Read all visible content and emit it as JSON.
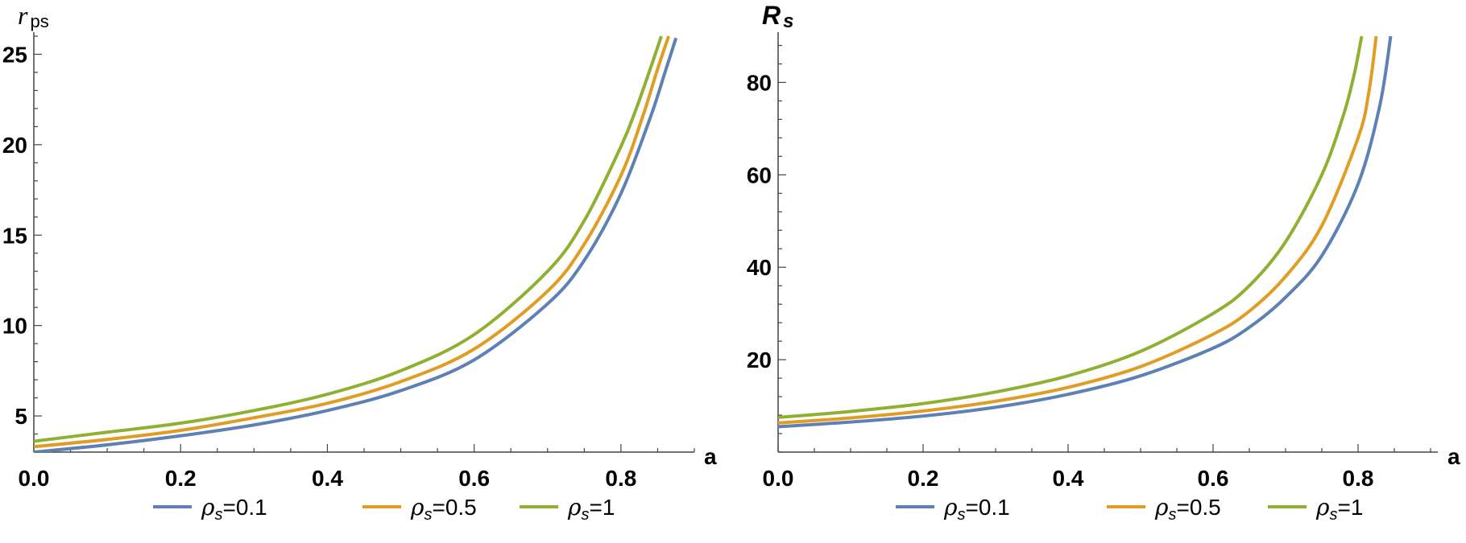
{
  "chart_data": [
    {
      "type": "line",
      "title": "",
      "ylabel": "r",
      "ylabel_sub": "ps",
      "xlabel": "a",
      "xlim": [
        0,
        0.9
      ],
      "ylim": [
        3,
        26
      ],
      "x_ticks": [
        0.0,
        0.2,
        0.4,
        0.6,
        0.8
      ],
      "x_tick_labels": [
        "0.0",
        "0.2",
        "0.4",
        "0.6",
        "0.8"
      ],
      "y_ticks": [
        5,
        10,
        15,
        20,
        25
      ],
      "y_tick_labels": [
        "5",
        "10",
        "15",
        "20",
        "25"
      ],
      "legend_position": "bottom",
      "series": [
        {
          "name": "ρs=0.1",
          "legend_label": "ρ",
          "legend_sub": "s",
          "legend_value": "=0.1",
          "color": "#5e81b5",
          "x": [
            0.0,
            0.1,
            0.2,
            0.3,
            0.4,
            0.5,
            0.6,
            0.7,
            0.75,
            0.8,
            0.84,
            0.86,
            0.875
          ],
          "y": [
            3.0,
            3.4,
            3.9,
            4.5,
            5.3,
            6.4,
            8.1,
            11.2,
            13.6,
            17.3,
            21.5,
            24.0,
            25.9
          ]
        },
        {
          "name": "ρs=0.5",
          "legend_label": "ρ",
          "legend_sub": "s",
          "legend_value": "=0.5",
          "color": "#e19c24",
          "x": [
            0.0,
            0.1,
            0.2,
            0.3,
            0.4,
            0.5,
            0.6,
            0.7,
            0.75,
            0.8,
            0.83,
            0.85,
            0.865
          ],
          "y": [
            3.3,
            3.7,
            4.2,
            4.9,
            5.7,
            6.9,
            8.7,
            11.9,
            14.5,
            18.3,
            21.6,
            24.2,
            26.0
          ]
        },
        {
          "name": "ρs=1",
          "legend_label": "ρ",
          "legend_sub": "s",
          "legend_value": "=1",
          "color": "#8fb032",
          "x": [
            0.0,
            0.1,
            0.2,
            0.3,
            0.4,
            0.5,
            0.6,
            0.7,
            0.75,
            0.8,
            0.82,
            0.84,
            0.855
          ],
          "y": [
            3.6,
            4.1,
            4.6,
            5.3,
            6.2,
            7.5,
            9.5,
            13.0,
            15.8,
            19.9,
            21.9,
            24.2,
            26.0
          ]
        }
      ]
    },
    {
      "type": "line",
      "title": "",
      "ylabel": "R",
      "ylabel_sub": "s",
      "xlabel": "a",
      "xlim": [
        0,
        0.91
      ],
      "ylim": [
        0,
        90
      ],
      "x_ticks": [
        0.0,
        0.2,
        0.4,
        0.6,
        0.8
      ],
      "x_tick_labels": [
        "0.0",
        "0.2",
        "0.4",
        "0.6",
        "0.8"
      ],
      "y_ticks": [
        20,
        40,
        60,
        80
      ],
      "y_tick_labels": [
        "20",
        "40",
        "60",
        "80"
      ],
      "legend_position": "bottom",
      "series": [
        {
          "name": "ρs=0.1",
          "legend_label": "ρ",
          "legend_sub": "s",
          "legend_value": "=0.1",
          "color": "#5e81b5",
          "x": [
            0.0,
            0.1,
            0.2,
            0.3,
            0.4,
            0.5,
            0.6,
            0.65,
            0.7,
            0.75,
            0.8,
            0.83,
            0.845
          ],
          "y": [
            5.5,
            6.5,
            7.8,
            9.7,
            12.5,
            16.5,
            22.5,
            27.0,
            33.5,
            42.5,
            58.0,
            75.0,
            90.0
          ]
        },
        {
          "name": "ρs=0.5",
          "legend_label": "ρ",
          "legend_sub": "s",
          "legend_value": "=0.5",
          "color": "#e19c24",
          "x": [
            0.0,
            0.1,
            0.2,
            0.3,
            0.4,
            0.5,
            0.6,
            0.65,
            0.7,
            0.75,
            0.8,
            0.815,
            0.825
          ],
          "y": [
            6.3,
            7.4,
            8.9,
            11.0,
            14.0,
            18.5,
            25.5,
            30.5,
            38.0,
            49.0,
            68.0,
            78.0,
            90.0
          ]
        },
        {
          "name": "ρs=1",
          "legend_label": "ρ",
          "legend_sub": "s",
          "legend_value": "=1",
          "color": "#8fb032",
          "x": [
            0.0,
            0.1,
            0.2,
            0.3,
            0.4,
            0.5,
            0.6,
            0.65,
            0.7,
            0.75,
            0.78,
            0.795,
            0.805
          ],
          "y": [
            7.5,
            8.8,
            10.5,
            13.0,
            16.5,
            21.8,
            30.0,
            36.0,
            45.5,
            60.0,
            73.0,
            82.0,
            90.0
          ]
        }
      ]
    }
  ]
}
